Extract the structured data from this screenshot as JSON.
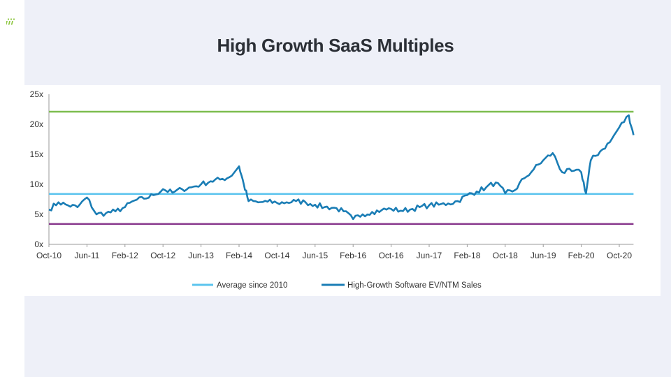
{
  "slide": {
    "title": "High Growth SaaS Multiples"
  },
  "colors": {
    "background": "#eef0f8",
    "title": "#2b2f36",
    "logo": "#8cc63f"
  },
  "chart_data": {
    "type": "line",
    "title": "",
    "xlabel": "",
    "ylabel": "",
    "x_start": "Oct-10",
    "x_end": "Jan-21",
    "xticks": [
      "Oct-10",
      "Jun-11",
      "Feb-12",
      "Oct-12",
      "Jun-13",
      "Feb-14",
      "Oct-14",
      "Jun-15",
      "Feb-16",
      "Oct-16",
      "Jun-17",
      "Feb-18",
      "Oct-18",
      "Jun-19",
      "Feb-20",
      "Oct-20"
    ],
    "yticks": [
      "0x",
      "5x",
      "10x",
      "15x",
      "20x",
      "25x"
    ],
    "ylim": [
      0,
      25
    ],
    "grid": false,
    "legend_position": "bottom",
    "series": [
      {
        "name": "High-Growth Software EV/NTM Sales",
        "color": "#1a7db5",
        "x": [
          "Oct-10",
          "Dec-10",
          "Feb-11",
          "Apr-11",
          "Jun-11",
          "Aug-11",
          "Oct-11",
          "Dec-11",
          "Feb-12",
          "Apr-12",
          "Jun-12",
          "Aug-12",
          "Oct-12",
          "Dec-12",
          "Feb-13",
          "Apr-13",
          "Jun-13",
          "Aug-13",
          "Oct-13",
          "Dec-13",
          "Feb-14",
          "Mar-14",
          "Apr-14",
          "Jun-14",
          "Aug-14",
          "Oct-14",
          "Dec-14",
          "Feb-15",
          "Apr-15",
          "Jun-15",
          "Aug-15",
          "Oct-15",
          "Dec-15",
          "Feb-16",
          "Apr-16",
          "Jun-16",
          "Aug-16",
          "Oct-16",
          "Dec-16",
          "Feb-17",
          "Apr-17",
          "Jun-17",
          "Aug-17",
          "Oct-17",
          "Dec-17",
          "Feb-18",
          "Apr-18",
          "Jun-18",
          "Aug-18",
          "Oct-18",
          "Dec-18",
          "Feb-19",
          "Apr-19",
          "Jun-19",
          "Aug-19",
          "Oct-19",
          "Dec-19",
          "Feb-20",
          "Mar-20",
          "Apr-20",
          "Jun-20",
          "Aug-20",
          "Oct-20",
          "Dec-20",
          "Jan-21"
        ],
        "values": [
          5.8,
          7.0,
          6.5,
          6.2,
          7.8,
          5.0,
          5.2,
          5.5,
          6.2,
          7.3,
          7.6,
          8.2,
          9.2,
          8.6,
          9.2,
          9.5,
          10.0,
          10.5,
          10.8,
          11.2,
          13.0,
          10.0,
          7.2,
          7.0,
          7.1,
          6.9,
          7.0,
          7.2,
          7.0,
          6.6,
          6.2,
          6.1,
          5.5,
          4.2,
          5.0,
          5.4,
          5.7,
          5.9,
          5.6,
          5.8,
          6.2,
          6.5,
          6.6,
          6.8,
          7.2,
          8.2,
          8.8,
          9.5,
          10.3,
          8.5,
          9.0,
          11.0,
          12.5,
          14.0,
          15.2,
          12.0,
          12.2,
          12.0,
          8.5,
          14.0,
          15.5,
          17.0,
          19.5,
          21.5,
          18.2
        ]
      },
      {
        "name": "Average since 2010",
        "color": "#5bc4ee",
        "value": 8.4
      },
      {
        "name": "",
        "color": "#7dbd4f",
        "value": 22.1
      },
      {
        "name": "",
        "color": "#8a3b8f",
        "value": 3.4
      }
    ]
  }
}
